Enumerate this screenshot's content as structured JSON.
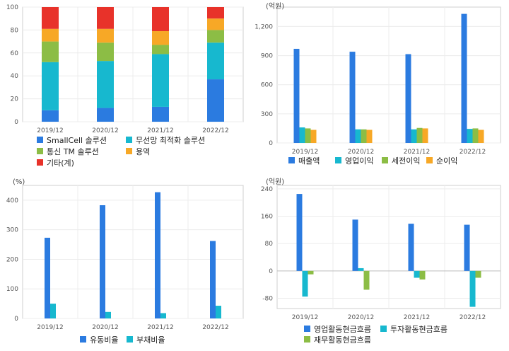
{
  "chart_data": [
    {
      "id": "revenue-mix",
      "type": "bar",
      "stacked": true,
      "unit": "",
      "categories": [
        "2019/12",
        "2020/12",
        "2021/12",
        "2022/12"
      ],
      "ylim": [
        0,
        100
      ],
      "yticks": [
        0,
        20,
        40,
        60,
        80,
        100
      ],
      "series": [
        {
          "name": "SmallCell 솔루션",
          "color": "#2b7be0",
          "values": [
            10,
            12,
            13,
            37
          ]
        },
        {
          "name": "무선망 최적화 솔루션",
          "color": "#17b8cf",
          "values": [
            42,
            41,
            46,
            32
          ]
        },
        {
          "name": "통신 TM 솔루션",
          "color": "#8cbd45",
          "values": [
            18,
            16,
            8,
            11
          ]
        },
        {
          "name": "용역",
          "color": "#f7a826",
          "values": [
            11,
            12,
            12,
            10
          ]
        },
        {
          "name": "기타(계)",
          "color": "#e8322a",
          "values": [
            19,
            19,
            21,
            10
          ]
        }
      ],
      "grid": true,
      "legend": "bottom"
    },
    {
      "id": "income",
      "type": "bar",
      "stacked": false,
      "unit": "(억원)",
      "categories": [
        "2019/12",
        "2020/12",
        "2021/12",
        "2022/12"
      ],
      "ylim": [
        0,
        1400
      ],
      "yticks": [
        0,
        300,
        600,
        900,
        1200
      ],
      "tick_labels": [
        "0",
        "300",
        "600",
        "900",
        "1,200"
      ],
      "series": [
        {
          "name": "매출액",
          "color": "#2b7be0",
          "values": [
            970,
            940,
            915,
            1330
          ]
        },
        {
          "name": "영업이익",
          "color": "#17b8cf",
          "values": [
            160,
            140,
            140,
            145
          ]
        },
        {
          "name": "세전이익",
          "color": "#8cbd45",
          "values": [
            150,
            140,
            155,
            150
          ]
        },
        {
          "name": "순이익",
          "color": "#f7a826",
          "values": [
            135,
            135,
            150,
            135
          ]
        }
      ],
      "grid": true,
      "legend": "bottom"
    },
    {
      "id": "ratios",
      "type": "bar",
      "stacked": false,
      "unit": "(%)",
      "categories": [
        "2019/12",
        "2020/12",
        "2021/12",
        "2022/12"
      ],
      "ylim": [
        0,
        450
      ],
      "yticks": [
        0,
        100,
        200,
        300,
        400
      ],
      "series": [
        {
          "name": "유동비율",
          "color": "#2b7be0",
          "values": [
            273,
            383,
            427,
            262
          ]
        },
        {
          "name": "부채비율",
          "color": "#17b8cf",
          "values": [
            50,
            22,
            18,
            43
          ]
        }
      ],
      "grid": true,
      "legend": "bottom"
    },
    {
      "id": "cashflow",
      "type": "bar",
      "stacked": false,
      "unit": "(억원)",
      "categories": [
        "2019/12",
        "2020/12",
        "2021/12",
        "2022/12"
      ],
      "ylim": [
        -110,
        250
      ],
      "yticks": [
        -80,
        0,
        80,
        160,
        240
      ],
      "series": [
        {
          "name": "영업활동현금흐름",
          "color": "#2b7be0",
          "values": [
            225,
            150,
            138,
            135
          ]
        },
        {
          "name": "투자활동현금흐름",
          "color": "#17b8cf",
          "values": [
            -75,
            8,
            -20,
            -105
          ]
        },
        {
          "name": "재무활동현금흐름",
          "color": "#8cbd45",
          "values": [
            -10,
            -55,
            -25,
            -20
          ]
        }
      ],
      "grid": true,
      "legend": "bottom"
    }
  ]
}
